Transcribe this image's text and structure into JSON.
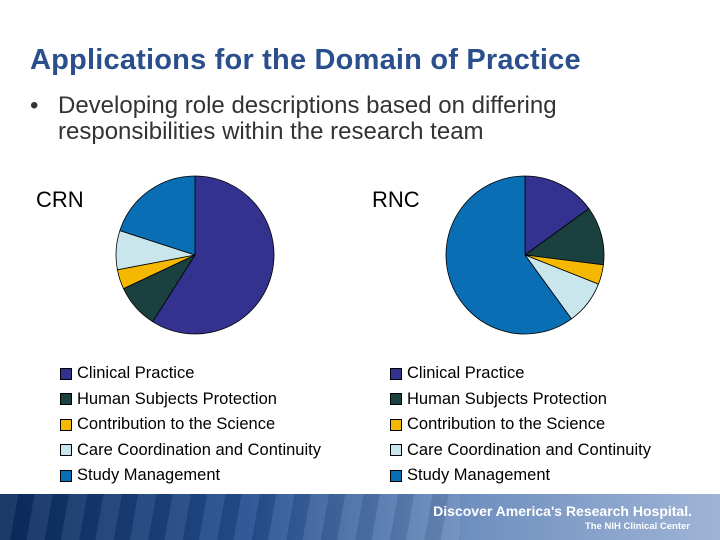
{
  "slide": {
    "title": "Applications for the Domain of Practice",
    "bullet": "Developing role descriptions based on differing responsibilities within the research team"
  },
  "colors": {
    "Clinical Practice": "#33338f",
    "Human Subjects Protection": "#1a4040",
    "Contribution to the Science": "#f5b800",
    "Care Coordination and Continuity": "#c8e6ec",
    "Study Management": "#0a6eb4"
  },
  "footer": {
    "main": "Discover America's Research Hospital.",
    "sub": "The NIH Clinical Center"
  },
  "chart_data": [
    {
      "type": "pie",
      "label": "CRN",
      "legend_position": "bottom",
      "categories": [
        "Clinical Practice",
        "Human Subjects Protection",
        "Contribution to the Science",
        "Care Coordination and Continuity",
        "Study Management"
      ],
      "values": [
        59,
        9,
        4,
        8,
        20
      ]
    },
    {
      "type": "pie",
      "label": "RNC",
      "legend_position": "bottom",
      "categories": [
        "Clinical Practice",
        "Human Subjects Protection",
        "Contribution to the Science",
        "Care Coordination and Continuity",
        "Study Management"
      ],
      "values": [
        15,
        12,
        4,
        9,
        60
      ]
    }
  ]
}
